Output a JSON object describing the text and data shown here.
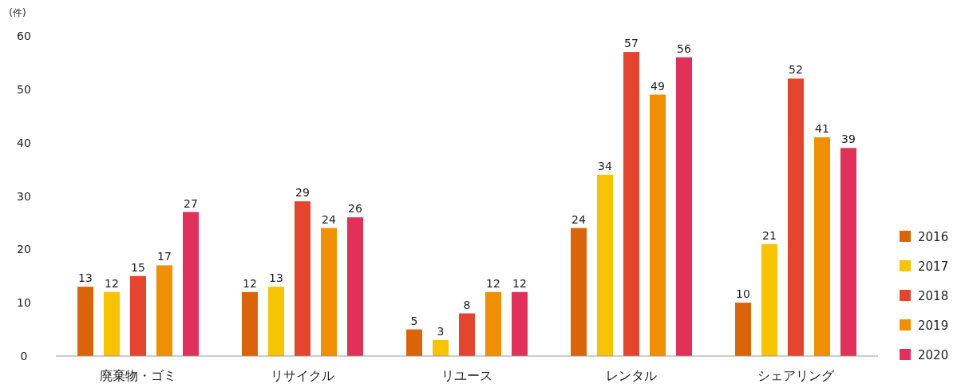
{
  "chart_data": {
    "type": "bar",
    "ylabel": "(件)",
    "categories": [
      "廃棄物・ゴミ",
      "リサイクル",
      "リユース",
      "レンタル",
      "シェアリング"
    ],
    "series": [
      {
        "name": "2016",
        "color": "#dc6408",
        "values": [
          13,
          12,
          5,
          24,
          10
        ]
      },
      {
        "name": "2017",
        "color": "#f8c300",
        "values": [
          12,
          13,
          3,
          34,
          21
        ]
      },
      {
        "name": "2018",
        "color": "#e5452e",
        "values": [
          15,
          29,
          8,
          57,
          52
        ]
      },
      {
        "name": "2019",
        "color": "#f09000",
        "values": [
          17,
          24,
          12,
          49,
          41
        ]
      },
      {
        "name": "2020",
        "color": "#e3305a",
        "values": [
          27,
          26,
          12,
          56,
          39
        ]
      }
    ],
    "ylim": [
      0,
      60
    ],
    "yticks": [
      0,
      10,
      20,
      30,
      40,
      50,
      60
    ],
    "data_labels": true,
    "legend": "right",
    "grid": false
  }
}
